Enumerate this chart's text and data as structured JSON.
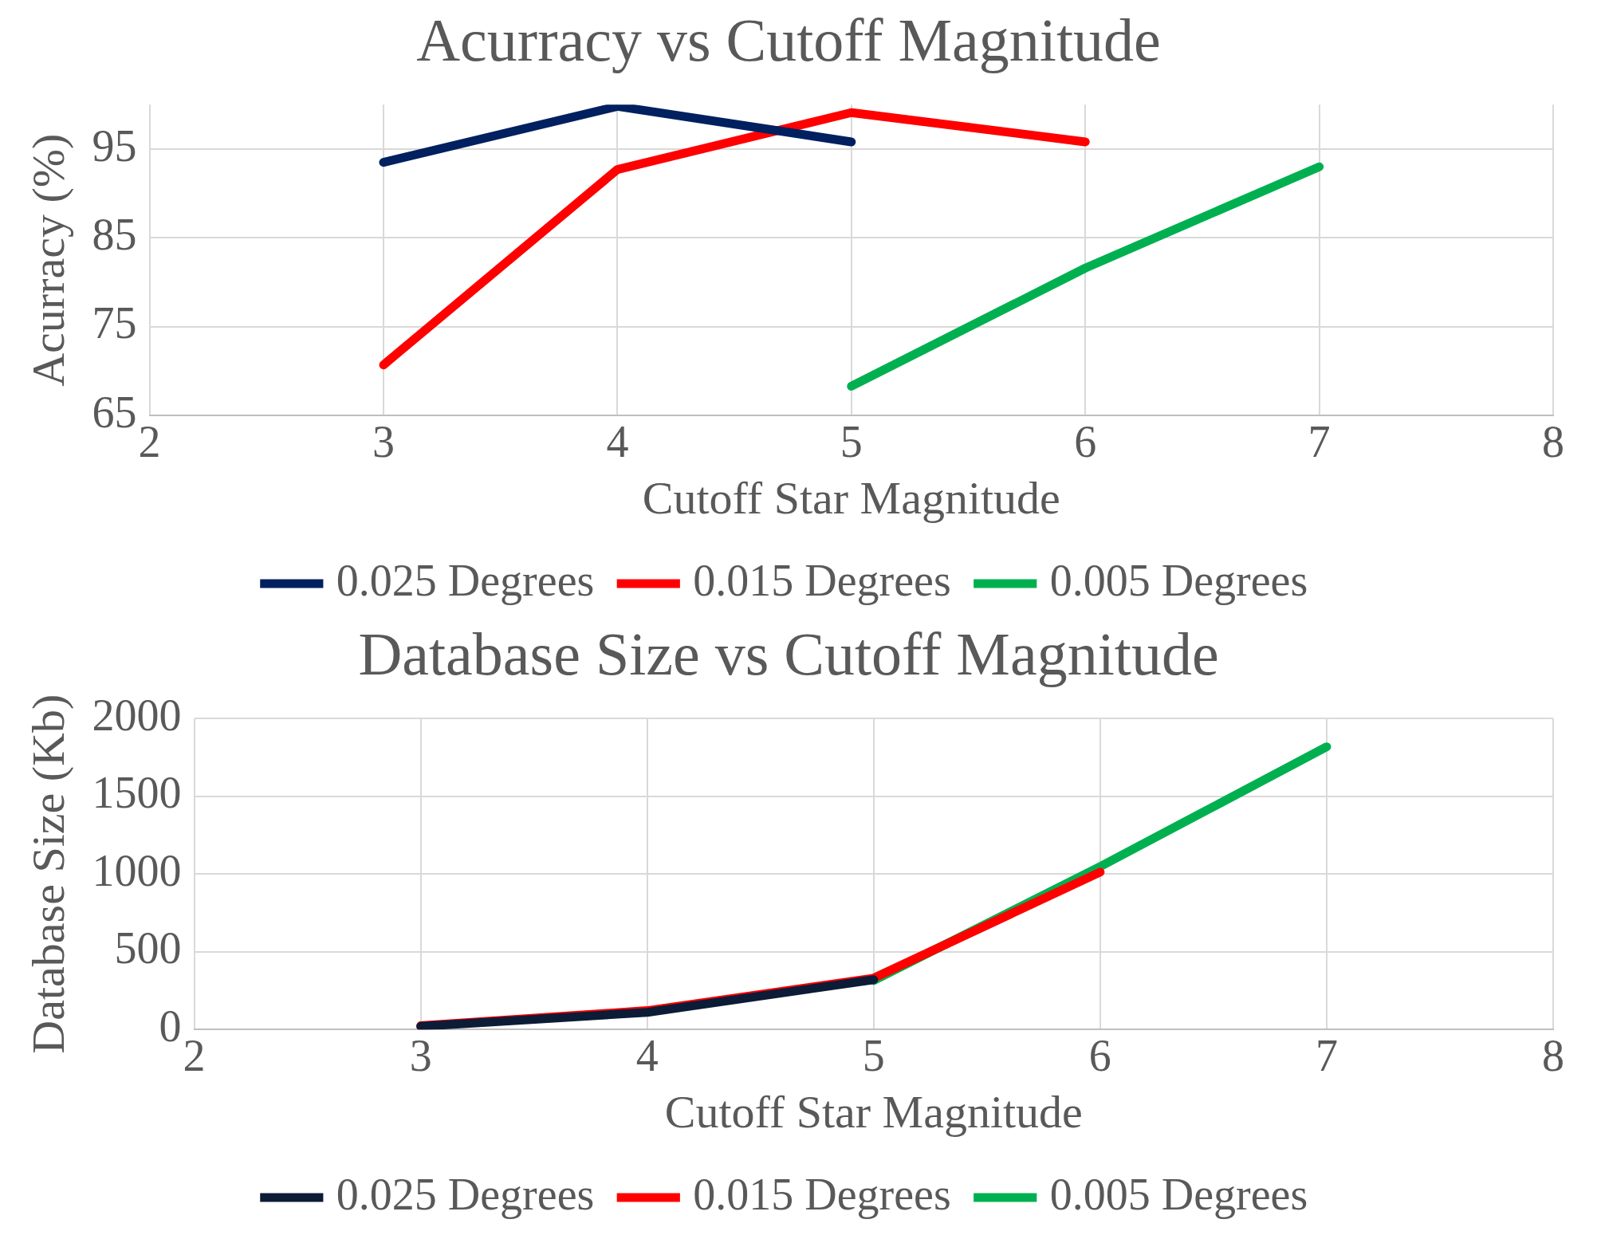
{
  "chart_data": [
    {
      "type": "line",
      "title": "Acurracy vs Cutoff Magnitude",
      "xlabel": "Cutoff Star Magnitude",
      "ylabel": "Acurracy (%)",
      "x": [
        3,
        4,
        5,
        6,
        7
      ],
      "series": [
        {
          "name": "0.025 Degrees",
          "color": "#002060",
          "values": [
            93.5,
            99.8,
            95.8,
            null,
            null
          ]
        },
        {
          "name": "0.015 Degrees",
          "color": "#ff0000",
          "values": [
            70.7,
            92.7,
            99.1,
            95.8,
            null
          ]
        },
        {
          "name": "0.005 Degrees",
          "color": "#00b050",
          "values": [
            null,
            null,
            68.3,
            81.6,
            93.0
          ]
        }
      ],
      "xlim": [
        2,
        8
      ],
      "xticks": [
        2,
        3,
        4,
        5,
        6,
        7,
        8
      ],
      "ylim": [
        65,
        100
      ],
      "yticks": [
        65,
        75,
        85,
        95
      ],
      "grid": true,
      "legend": "bottom",
      "marker": "none",
      "line_style": "solid"
    },
    {
      "type": "line",
      "title": "Database Size vs Cutoff Magnitude",
      "xlabel": "Cutoff Star Magnitude",
      "ylabel": "Database Size (Kb)",
      "x": [
        3,
        4,
        5,
        6,
        7
      ],
      "series": [
        {
          "name": "0.025 Degrees",
          "color": "#0c1c36",
          "values": [
            20,
            110,
            320,
            null,
            null
          ]
        },
        {
          "name": "0.015 Degrees",
          "color": "#ff0000",
          "values": [
            24,
            121,
            330,
            1012,
            null
          ]
        },
        {
          "name": "0.005 Degrees",
          "color": "#00b050",
          "values": [
            null,
            null,
            315,
            1048,
            1818
          ]
        }
      ],
      "xlim": [
        2,
        8
      ],
      "xticks": [
        2,
        3,
        4,
        5,
        6,
        7,
        8
      ],
      "ylim": [
        0,
        2000
      ],
      "yticks": [
        0,
        500,
        1000,
        1500,
        2000
      ],
      "grid": true,
      "legend": "bottom",
      "marker": "none",
      "line_style": "solid"
    }
  ]
}
